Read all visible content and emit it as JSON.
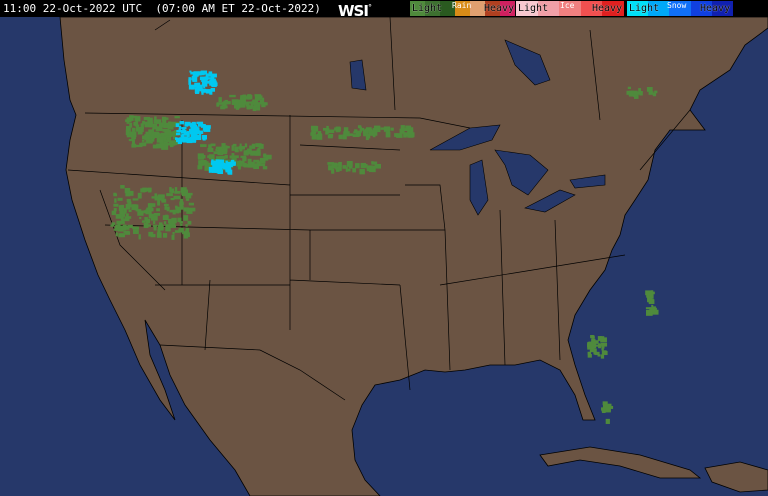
{
  "header": {
    "time_text": "11:00 22-Oct-2022 UTC  (07:00 AM ET 22-Oct-2022)",
    "logo": "WSI",
    "legend": {
      "rain": {
        "title": "Rain",
        "light": "Light",
        "heavy": "Heavy",
        "colors": [
          "#4f8a3c",
          "#3d7030",
          "#2a5a20",
          "#d88c18",
          "#e0a070",
          "#b04020",
          "#d02060"
        ]
      },
      "ice": {
        "title": "Ice",
        "light": "Light",
        "heavy": "Heavy",
        "colors": [
          "#f8c8d0",
          "#f0a0a8",
          "#f08080",
          "#f05050",
          "#e02020"
        ]
      },
      "snow": {
        "title": "Snow",
        "light": "Light",
        "heavy": "Heavy",
        "colors": [
          "#00e0f8",
          "#00a8f8",
          "#1070f8",
          "#1040e0",
          "#1020b0"
        ]
      }
    }
  },
  "map": {
    "ocean_color": "#26386a",
    "land_color": "#6b5443",
    "lake_color": "#26386a",
    "border_color": "#000000"
  }
}
